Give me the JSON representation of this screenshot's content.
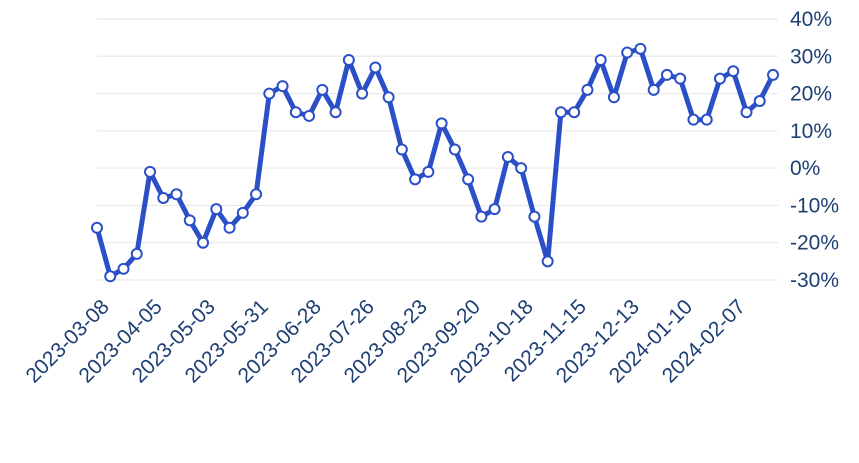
{
  "chart_data": {
    "type": "line",
    "title": "",
    "xlabel": "",
    "ylabel": "",
    "x_tick_labels": [
      "2023-03-08",
      "2023-04-05",
      "2023-05-03",
      "2023-05-31",
      "2023-06-28",
      "2023-07-26",
      "2023-08-23",
      "2023-09-20",
      "2023-10-18",
      "2023-11-15",
      "2023-12-13",
      "2024-01-10",
      "2024-02-07"
    ],
    "y_tick_labels": [
      "40%",
      "30%",
      "20%",
      "10%",
      "0%",
      "-10%",
      "-20%",
      "-30%"
    ],
    "ylim": [
      -30,
      40
    ],
    "y_axis_position": "right",
    "grid": true,
    "series_color": "#2b4fc7",
    "series": [
      {
        "x": [
          "2023-03-01",
          "2023-03-08",
          "2023-03-15",
          "2023-03-22",
          "2023-03-29",
          "2023-04-05",
          "2023-04-12",
          "2023-04-19",
          "2023-04-26",
          "2023-05-03",
          "2023-05-10",
          "2023-05-17",
          "2023-05-24",
          "2023-05-31",
          "2023-06-07",
          "2023-06-14",
          "2023-06-21",
          "2023-06-28",
          "2023-07-05",
          "2023-07-12",
          "2023-07-19",
          "2023-07-26",
          "2023-08-02",
          "2023-08-09",
          "2023-08-16",
          "2023-08-23",
          "2023-08-30",
          "2023-09-06",
          "2023-09-13",
          "2023-09-20",
          "2023-09-27",
          "2023-10-04",
          "2023-10-11",
          "2023-10-18",
          "2023-10-25",
          "2023-11-01",
          "2023-11-08",
          "2023-11-15",
          "2023-11-22",
          "2023-11-29",
          "2023-12-06",
          "2023-12-13",
          "2023-12-20",
          "2023-12-27",
          "2024-01-03",
          "2024-01-10",
          "2024-01-17",
          "2024-01-24",
          "2024-01-31",
          "2024-02-07",
          "2024-02-14",
          "2024-02-21"
        ],
        "values": [
          -16,
          -29,
          -27,
          -23,
          -1,
          -8,
          -7,
          -14,
          -20,
          -11,
          -16,
          -12,
          -7,
          20,
          22,
          15,
          14,
          21,
          15,
          29,
          20,
          27,
          19,
          5,
          -3,
          -1,
          12,
          5,
          -3,
          -13,
          -11,
          3,
          0,
          -13,
          -25,
          15,
          15,
          21,
          29,
          19,
          31,
          32,
          21,
          25,
          24,
          13,
          13,
          24,
          26,
          15,
          18,
          25
        ]
      }
    ]
  }
}
